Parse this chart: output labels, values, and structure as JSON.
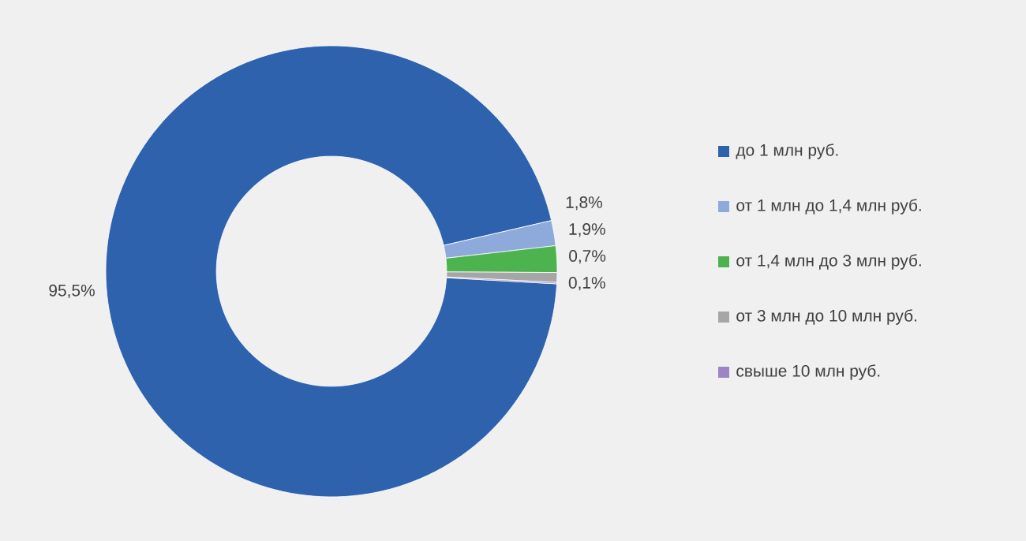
{
  "chart_data": {
    "type": "donut",
    "categories": [
      "до 1 млн руб.",
      "от 1 млн до 1,4 млн руб.",
      "от 1,4 млн до 3 млн руб.",
      "от 3 млн до 10 млн руб.",
      "свыше 10 млн руб."
    ],
    "values": [
      95.5,
      1.8,
      1.9,
      0.7,
      0.1
    ],
    "value_labels": [
      "95,5%",
      "1,8%",
      "1,9%",
      "0,7%",
      "0,1%"
    ],
    "colors": [
      "#2e62ad",
      "#8eaadb",
      "#4cb34f",
      "#a6a6a6",
      "#9b85c4"
    ],
    "legend": "right"
  }
}
